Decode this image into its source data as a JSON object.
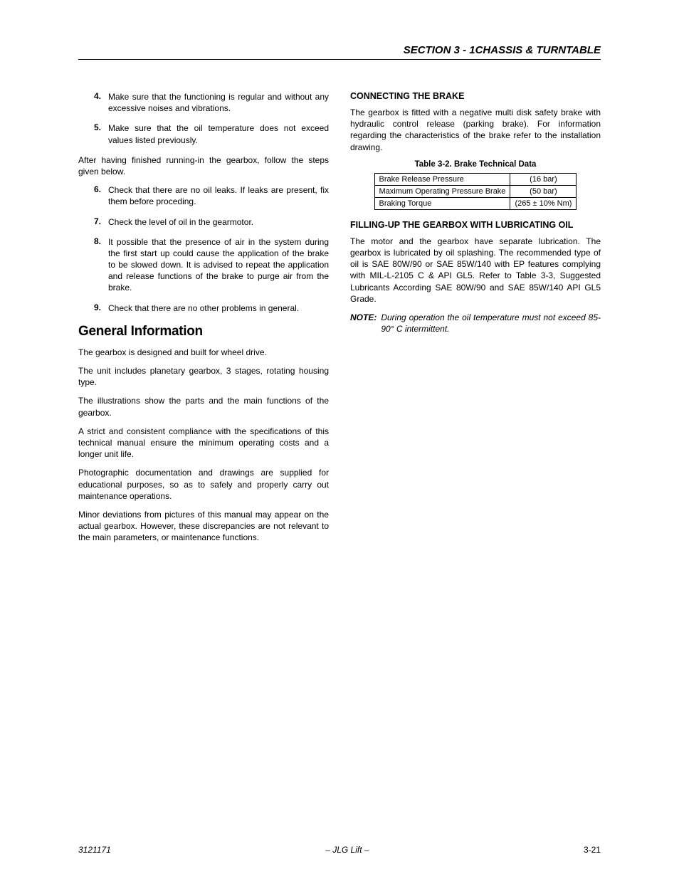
{
  "header": {
    "section_title": "SECTION 3 - 1CHASSIS & TURNTABLE"
  },
  "left": {
    "list1": [
      {
        "n": "4.",
        "t": "Make sure that the functioning is regular and without any excessive noises and vibrations."
      },
      {
        "n": "5.",
        "t": "Make sure that the oil temperature does not exceed values listed previously."
      }
    ],
    "after_list1": "After having finished running-in the gearbox, follow the steps given below.",
    "list2": [
      {
        "n": "6.",
        "t": "Check that there are no oil leaks. If leaks are present, fix them before proceding."
      },
      {
        "n": "7.",
        "t": "Check the level of oil in the gearmotor."
      },
      {
        "n": "8.",
        "t": "It possible that the presence of air in the system during the first start up could cause the application of the brake to be slowed down. It is advised to repeat the application and release functions of the  brake to purge air from the brake."
      },
      {
        "n": "9.",
        "t": "Check that there are no other problems in general."
      }
    ],
    "h2": "General Information",
    "paras": [
      "The gearbox is designed and built for wheel drive.",
      "The unit includes planetary gearbox, 3 stages, rotating housing type.",
      "The illustrations show the parts and the main functions of the gearbox.",
      "A strict and consistent compliance with the specifications of this technical manual ensure the minimum operating costs and a longer unit life.",
      "Photographic documentation and drawings are supplied for educational purposes, so as to safely and properly carry out maintenance operations.",
      "Minor deviations from pictures of this manual may appear on the actual gearbox. However, these discrepancies are not relevant to the main parameters, or maintenance functions."
    ]
  },
  "right": {
    "sub1": "CONNECTING THE BRAKE",
    "p1": "The gearbox is fitted with a negative multi disk safety brake with hydraulic control release (parking brake). For information regarding the characteristics of the brake refer to the installation drawing.",
    "table_caption": "Table 3-2.  Brake Technical Data",
    "table": {
      "rows": [
        {
          "label": "Brake Release Pressure",
          "value": "(16 bar)"
        },
        {
          "label": "Maximum Operating Pressure Brake",
          "value": "(50 bar)"
        },
        {
          "label": "Braking Torque",
          "value": "(265 ± 10% Nm)"
        }
      ]
    },
    "sub2": "FILLING-UP THE GEARBOX WITH LUBRICATING OIL",
    "p2": "The motor and the gearbox have separate lubrication. The gearbox is lubricated by oil splashing. The recommended type of oil is SAE 80W/90 or SAE 85W/140 with EP features complying with MIL-L-2105 C & API GL5. Refer to Table 3-3, Suggested Lubricants According SAE 80W/90 and SAE 85W/140 API GL5 Grade.",
    "note_label": "NOTE:",
    "note_text": "During operation the oil temperature must not exceed 85-90° C intermittent."
  },
  "footer": {
    "docnum": "3121171",
    "center": "– JLG Lift –",
    "page": "3-21"
  }
}
